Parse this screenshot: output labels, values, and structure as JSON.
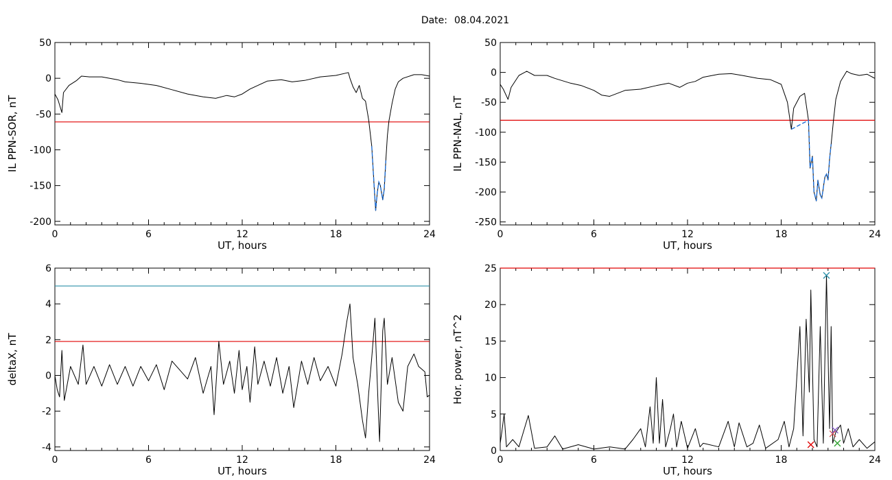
{
  "header": {
    "date_label": "Date:",
    "date_value": "08.04.2021"
  },
  "chart_data": [
    {
      "type": "line",
      "ylabel": "IL PPN-SOR, nT",
      "xlabel": "UT, hours",
      "xlim": [
        0,
        24
      ],
      "ylim": [
        -205,
        50
      ],
      "xticks": [
        0,
        6,
        12,
        18,
        24
      ],
      "yticks": [
        50,
        0,
        -50,
        -100,
        -150,
        -200
      ],
      "threshold": {
        "value": -61,
        "color": "#e00000"
      },
      "highlight_color": "#1f6fd6",
      "highlight_range": [
        20.2,
        21.2
      ],
      "series": [
        {
          "color": "#000000",
          "points": [
            [
              0,
              -22
            ],
            [
              0.2,
              -30
            ],
            [
              0.45,
              -48
            ],
            [
              0.55,
              -20
            ],
            [
              0.9,
              -10
            ],
            [
              1.4,
              -3
            ],
            [
              1.7,
              3
            ],
            [
              2.2,
              2
            ],
            [
              3,
              2
            ],
            [
              4,
              -2
            ],
            [
              4.5,
              -5
            ],
            [
              5.5,
              -7
            ],
            [
              6.5,
              -10
            ],
            [
              7.5,
              -16
            ],
            [
              8.5,
              -22
            ],
            [
              9.5,
              -26
            ],
            [
              10.3,
              -28
            ],
            [
              11,
              -24
            ],
            [
              11.5,
              -26
            ],
            [
              12,
              -22
            ],
            [
              12.5,
              -15
            ],
            [
              13,
              -10
            ],
            [
              13.6,
              -4
            ],
            [
              14.5,
              -2
            ],
            [
              15.2,
              -5
            ],
            [
              16,
              -3
            ],
            [
              17,
              2
            ],
            [
              18,
              4
            ],
            [
              18.8,
              8
            ],
            [
              18.9,
              0
            ],
            [
              19.1,
              -12
            ],
            [
              19.3,
              -20
            ],
            [
              19.5,
              -10
            ],
            [
              19.7,
              -28
            ],
            [
              19.9,
              -32
            ],
            [
              20.1,
              -58
            ],
            [
              20.3,
              -95
            ],
            [
              20.45,
              -150
            ],
            [
              20.55,
              -185
            ],
            [
              20.65,
              -160
            ],
            [
              20.75,
              -145
            ],
            [
              20.85,
              -150
            ],
            [
              21.0,
              -170
            ],
            [
              21.1,
              -155
            ],
            [
              21.2,
              -115
            ],
            [
              21.3,
              -80
            ],
            [
              21.4,
              -60
            ],
            [
              21.6,
              -35
            ],
            [
              21.8,
              -15
            ],
            [
              22,
              -5
            ],
            [
              22.3,
              0
            ],
            [
              23,
              5
            ],
            [
              23.5,
              5
            ],
            [
              24,
              3
            ]
          ]
        }
      ]
    },
    {
      "type": "line",
      "ylabel": "IL PPN-NAL, nT",
      "xlabel": "UT, hours",
      "xlim": [
        0,
        24
      ],
      "ylim": [
        -255,
        50
      ],
      "xticks": [
        0,
        6,
        12,
        18,
        24
      ],
      "yticks": [
        50,
        0,
        -50,
        -100,
        -150,
        -200,
        -250
      ],
      "threshold": {
        "value": -80,
        "color": "#e00000"
      },
      "highlight_color": "#1f6fd6",
      "highlight_range": [
        18.6,
        21.2
      ],
      "series": [
        {
          "color": "#000000",
          "points": [
            [
              0,
              -20
            ],
            [
              0.2,
              -28
            ],
            [
              0.5,
              -45
            ],
            [
              0.7,
              -25
            ],
            [
              1.2,
              -5
            ],
            [
              1.7,
              2
            ],
            [
              2.2,
              -5
            ],
            [
              3,
              -5
            ],
            [
              3.5,
              -10
            ],
            [
              4.5,
              -18
            ],
            [
              5.2,
              -22
            ],
            [
              6,
              -30
            ],
            [
              6.5,
              -38
            ],
            [
              7,
              -40
            ],
            [
              8,
              -30
            ],
            [
              9,
              -28
            ],
            [
              10,
              -22
            ],
            [
              10.8,
              -18
            ],
            [
              11.5,
              -25
            ],
            [
              12,
              -18
            ],
            [
              12.5,
              -15
            ],
            [
              13,
              -8
            ],
            [
              14,
              -3
            ],
            [
              14.8,
              -2
            ],
            [
              15.5,
              -5
            ],
            [
              16.5,
              -10
            ],
            [
              17.3,
              -12
            ],
            [
              18,
              -20
            ],
            [
              18.4,
              -50
            ],
            [
              18.65,
              -95
            ],
            [
              18.8,
              -60
            ],
            [
              19.2,
              -40
            ],
            [
              19.5,
              -35
            ],
            [
              19.75,
              -80
            ],
            [
              19.85,
              -160
            ],
            [
              20.0,
              -140
            ],
            [
              20.1,
              -200
            ],
            [
              20.25,
              -215
            ],
            [
              20.35,
              -180
            ],
            [
              20.5,
              -205
            ],
            [
              20.6,
              -210
            ],
            [
              20.8,
              -175
            ],
            [
              20.9,
              -170
            ],
            [
              21.0,
              -180
            ],
            [
              21.1,
              -145
            ],
            [
              21.2,
              -120
            ],
            [
              21.35,
              -80
            ],
            [
              21.5,
              -45
            ],
            [
              21.8,
              -15
            ],
            [
              22.2,
              2
            ],
            [
              22.5,
              -2
            ],
            [
              23,
              -5
            ],
            [
              23.5,
              -3
            ],
            [
              24,
              -10
            ]
          ]
        }
      ]
    },
    {
      "type": "line",
      "ylabel": "deltaX, nT",
      "xlabel": "UT, hours",
      "xlim": [
        0,
        24
      ],
      "ylim": [
        -4.2,
        6
      ],
      "xticks": [
        0,
        6,
        12,
        18,
        24
      ],
      "yticks": [
        6,
        4,
        2,
        0,
        -2,
        -4
      ],
      "hlines": [
        {
          "value": 5.0,
          "color": "#2a8fa8"
        },
        {
          "value": 1.9,
          "color": "#e00000"
        }
      ],
      "series": [
        {
          "color": "#000000",
          "points": [
            [
              0,
              0
            ],
            [
              0.15,
              -0.8
            ],
            [
              0.3,
              -1.2
            ],
            [
              0.45,
              1.4
            ],
            [
              0.6,
              -1.4
            ],
            [
              1,
              0.5
            ],
            [
              1.5,
              -0.5
            ],
            [
              1.8,
              1.7
            ],
            [
              2,
              -0.5
            ],
            [
              2.5,
              0.5
            ],
            [
              3,
              -0.6
            ],
            [
              3.5,
              0.6
            ],
            [
              4,
              -0.5
            ],
            [
              4.5,
              0.5
            ],
            [
              5,
              -0.6
            ],
            [
              5.5,
              0.5
            ],
            [
              6,
              -0.3
            ],
            [
              6.5,
              0.6
            ],
            [
              7,
              -0.8
            ],
            [
              7.5,
              0.8
            ],
            [
              8,
              0.3
            ],
            [
              8.5,
              -0.2
            ],
            [
              9,
              1
            ],
            [
              9.5,
              -1
            ],
            [
              10,
              0.5
            ],
            [
              10.2,
              -2.2
            ],
            [
              10.5,
              1.9
            ],
            [
              10.8,
              -0.5
            ],
            [
              11.2,
              0.8
            ],
            [
              11.5,
              -1
            ],
            [
              11.8,
              1.4
            ],
            [
              12,
              -0.8
            ],
            [
              12.3,
              0.5
            ],
            [
              12.5,
              -1.5
            ],
            [
              12.8,
              1.6
            ],
            [
              13,
              -0.5
            ],
            [
              13.4,
              0.8
            ],
            [
              13.8,
              -0.6
            ],
            [
              14.2,
              1
            ],
            [
              14.6,
              -1
            ],
            [
              15,
              0.5
            ],
            [
              15.3,
              -1.8
            ],
            [
              15.8,
              0.8
            ],
            [
              16.2,
              -0.5
            ],
            [
              16.6,
              1
            ],
            [
              17,
              -0.3
            ],
            [
              17.5,
              0.5
            ],
            [
              18,
              -0.6
            ],
            [
              18.4,
              1.2
            ],
            [
              18.7,
              3
            ],
            [
              18.9,
              4
            ],
            [
              19.1,
              1
            ],
            [
              19.4,
              -0.5
            ],
            [
              19.7,
              -2.5
            ],
            [
              19.9,
              -3.5
            ],
            [
              20.1,
              -1
            ],
            [
              20.3,
              1
            ],
            [
              20.5,
              3.2
            ],
            [
              20.7,
              -1.5
            ],
            [
              20.8,
              -3.7
            ],
            [
              21,
              2.5
            ],
            [
              21.1,
              3.2
            ],
            [
              21.3,
              -0.5
            ],
            [
              21.6,
              1
            ],
            [
              22,
              -1.5
            ],
            [
              22.3,
              -2
            ],
            [
              22.6,
              0.5
            ],
            [
              23,
              1.2
            ],
            [
              23.3,
              0.5
            ],
            [
              23.7,
              0.2
            ],
            [
              23.85,
              -1.2
            ],
            [
              24,
              -1.1
            ]
          ]
        }
      ]
    },
    {
      "type": "line",
      "ylabel": "Hor. power, nT^2",
      "xlabel": "UT, hours",
      "xlim": [
        0,
        24
      ],
      "ylim": [
        0,
        25
      ],
      "xticks": [
        0,
        6,
        12,
        18,
        24
      ],
      "yticks": [
        0,
        5,
        10,
        15,
        20,
        25
      ],
      "hlines": [
        {
          "value": 25,
          "color": "#e00000"
        }
      ],
      "markers": [
        {
          "x": 20.9,
          "y": 24,
          "color": "#2a8fa8"
        },
        {
          "x": 19.9,
          "y": 0.8,
          "color": "#e00000"
        },
        {
          "x": 21.3,
          "y": 2.3,
          "color": "#d05050"
        },
        {
          "x": 21.45,
          "y": 2.8,
          "color": "#7a4fbf"
        },
        {
          "x": 21.6,
          "y": 1.0,
          "color": "#2ca02c"
        }
      ],
      "series": [
        {
          "color": "#000000",
          "points": [
            [
              0,
              1
            ],
            [
              0.1,
              2.5
            ],
            [
              0.25,
              5
            ],
            [
              0.4,
              0.5
            ],
            [
              0.8,
              1.5
            ],
            [
              1.2,
              0.5
            ],
            [
              1.8,
              4.8
            ],
            [
              2.2,
              0.3
            ],
            [
              3,
              0.5
            ],
            [
              3.5,
              2
            ],
            [
              4,
              0.2
            ],
            [
              5,
              0.8
            ],
            [
              6,
              0.2
            ],
            [
              7,
              0.5
            ],
            [
              8,
              0.2
            ],
            [
              8.5,
              1.5
            ],
            [
              9,
              3
            ],
            [
              9.3,
              0.5
            ],
            [
              9.6,
              6
            ],
            [
              9.8,
              1
            ],
            [
              10,
              10
            ],
            [
              10.2,
              1
            ],
            [
              10.4,
              7
            ],
            [
              10.6,
              0.5
            ],
            [
              10.9,
              3
            ],
            [
              11.1,
              5
            ],
            [
              11.3,
              0.5
            ],
            [
              11.6,
              4
            ],
            [
              12,
              0.3
            ],
            [
              12.5,
              3
            ],
            [
              12.8,
              0.5
            ],
            [
              13,
              1
            ],
            [
              14,
              0.5
            ],
            [
              14.6,
              4
            ],
            [
              15,
              0.5
            ],
            [
              15.3,
              3.8
            ],
            [
              15.8,
              0.5
            ],
            [
              16.2,
              1
            ],
            [
              16.6,
              3.5
            ],
            [
              17,
              0.3
            ],
            [
              17.8,
              1.5
            ],
            [
              18.2,
              4
            ],
            [
              18.5,
              0.5
            ],
            [
              18.8,
              3
            ],
            [
              19.2,
              17
            ],
            [
              19.4,
              2
            ],
            [
              19.6,
              18
            ],
            [
              19.8,
              8
            ],
            [
              19.9,
              22
            ],
            [
              20.1,
              1.5
            ],
            [
              20.3,
              0.5
            ],
            [
              20.5,
              17
            ],
            [
              20.7,
              1
            ],
            [
              20.9,
              24
            ],
            [
              21.1,
              3
            ],
            [
              21.2,
              17
            ],
            [
              21.3,
              1
            ],
            [
              21.5,
              2.5
            ],
            [
              21.8,
              3.5
            ],
            [
              22,
              1
            ],
            [
              22.3,
              3
            ],
            [
              22.6,
              0.5
            ],
            [
              23,
              1.5
            ],
            [
              23.5,
              0.3
            ],
            [
              24,
              1.2
            ]
          ]
        }
      ]
    }
  ]
}
